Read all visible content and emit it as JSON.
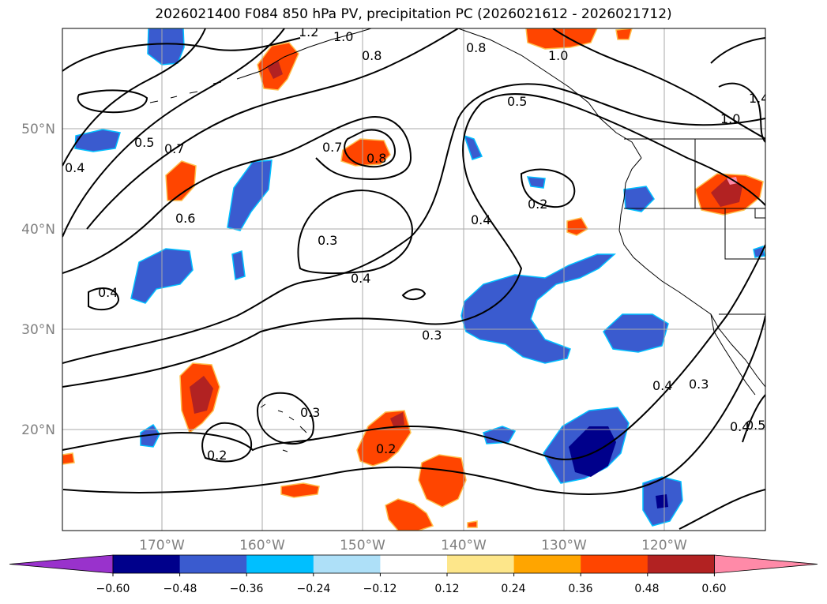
{
  "title": "2026021400 F084 850 hPa PV, precipitation PC (2026021612 - 2026021712)",
  "map": {
    "lat_labels": [
      "50°N",
      "40°N",
      "30°N",
      "20°N"
    ],
    "lon_labels": [
      "170°W",
      "160°W",
      "150°W",
      "140°W",
      "130°W",
      "120°W"
    ],
    "contour_labels": [
      "1.2",
      "1.0",
      "0.8",
      "0.8",
      "1.0",
      "0.5",
      "1.4",
      "1.0",
      "0.5",
      "0.4",
      "0.7",
      "0.7",
      "0.8",
      "0.6",
      "0.3",
      "0.4",
      "0.4",
      "0.2",
      "0.4",
      "0.3",
      "0.3",
      "0.2",
      "0.2",
      "0.4",
      "0.3",
      "0.4",
      "0.5"
    ]
  },
  "colorbar": {
    "ticks": [
      "−0.60",
      "−0.48",
      "−0.36",
      "−0.24",
      "−0.12",
      "0.12",
      "0.24",
      "0.36",
      "0.48",
      "0.60"
    ],
    "colors": [
      "#9932cc",
      "#00008b",
      "#3a5bcf",
      "#00bfff",
      "#aee0f8",
      "#ffffff",
      "#fde68a",
      "#ffa500",
      "#ff4500",
      "#b22222",
      "#ff8aa8"
    ]
  }
}
